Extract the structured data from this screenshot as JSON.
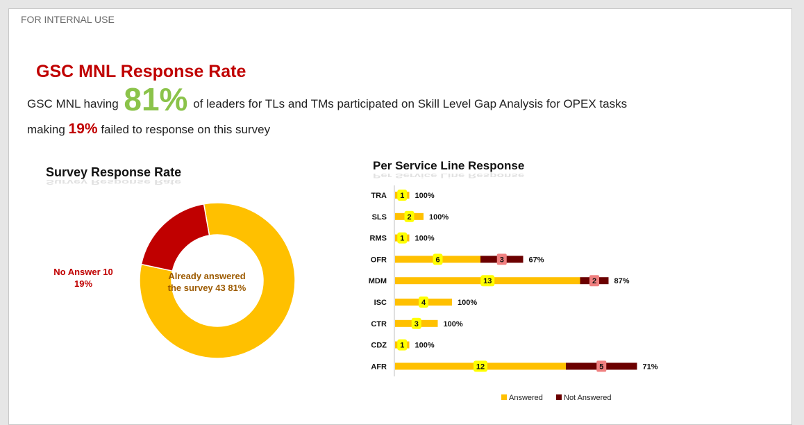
{
  "header": {
    "internal_label": "FOR INTERNAL USE",
    "title": "GSC MNL Response Rate",
    "line1_prefix": "GSC MNL having",
    "line1_pct": "81%",
    "line1_suffix": "of leaders for TLs and TMs participated on Skill Level Gap Analysis for OPEX tasks",
    "line2_prefix": "making",
    "line2_pct": "19%",
    "line2_suffix": "failed to response on this survey"
  },
  "colors": {
    "answered": "#ffc000",
    "not_answered": "#6b0000",
    "no_answer_slice": "#c00000",
    "count_badge": "#ffff00",
    "count_badge_na": "#f08080"
  },
  "chart_data": [
    {
      "type": "pie",
      "title": "Survey Response Rate",
      "donut": true,
      "slices": [
        {
          "name": "Already answered the survey",
          "value": 43,
          "percent": 81,
          "label": "Already answered the survey 43 81%"
        },
        {
          "name": "No Answer",
          "value": 10,
          "percent": 19,
          "label_line1": "No Answer 10",
          "label_line2": "19%"
        }
      ]
    },
    {
      "type": "bar",
      "orientation": "horizontal",
      "stacked": true,
      "title": "Per Service Line Response",
      "categories": [
        "TRA",
        "SLS",
        "RMS",
        "OFR",
        "MDM",
        "ISC",
        "CTR",
        "CDZ",
        "AFR"
      ],
      "series": [
        {
          "name": "Answered",
          "values": [
            1,
            2,
            1,
            6,
            13,
            4,
            3,
            1,
            12
          ]
        },
        {
          "name": "Not Answered",
          "values": [
            0,
            0,
            0,
            3,
            2,
            0,
            0,
            0,
            5
          ]
        }
      ],
      "percent_labels": [
        "100%",
        "100%",
        "100%",
        "67%",
        "87%",
        "100%",
        "100%",
        "100%",
        "71%"
      ],
      "legend": "bottom"
    }
  ]
}
